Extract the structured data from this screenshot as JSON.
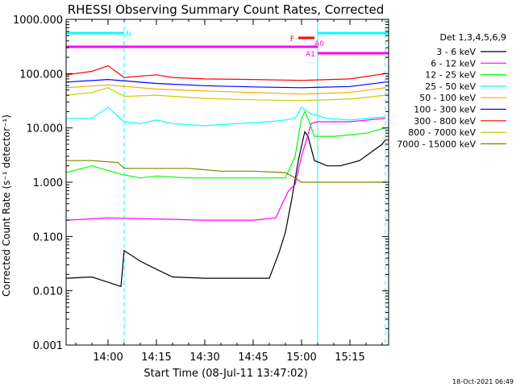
{
  "chart_data": {
    "type": "line",
    "title": "RHESSI Observing Summary Count Rates, Corrected",
    "xlabel": "Start Time (08-Jul-11 13:47:02)",
    "ylabel": "Corrected Count Rate (s⁻¹ detector⁻¹)",
    "y_scale": "log",
    "ylim": [
      0.001,
      1000
    ],
    "xlim": [
      "13:47",
      "15:27"
    ],
    "x_ticks": [
      "14:00",
      "14:15",
      "14:30",
      "14:45",
      "15:00",
      "15:15"
    ],
    "y_ticks": [
      "1000.000",
      "100.000",
      "10.000",
      "1.000",
      "0.100",
      "0.010",
      "0.001"
    ],
    "legend_title": "Det 1,3,4,5,6,9",
    "legend_position": "right",
    "footer_date": "18-Oct-2021 06:49",
    "series": [
      {
        "name": "3 - 6 keV",
        "color": "#000000",
        "x": [
          "13:47",
          "13:55",
          "14:04",
          "14:05",
          "14:10",
          "14:15",
          "14:20",
          "14:30",
          "14:40",
          "14:50",
          "14:53",
          "14:55",
          "14:57",
          "14:59",
          "15:01",
          "15:02",
          "15:04",
          "15:08",
          "15:12",
          "15:18",
          "15:25",
          "15:26"
        ],
        "y": [
          0.017,
          0.018,
          0.012,
          0.055,
          0.035,
          0.025,
          0.018,
          0.017,
          0.017,
          0.017,
          0.05,
          0.12,
          0.5,
          2.5,
          8.5,
          7.0,
          2.5,
          2.0,
          2.0,
          2.5,
          5.0,
          6.0
        ]
      },
      {
        "name": "6 - 12 keV",
        "color": "#ff00ff",
        "x": [
          "13:47",
          "14:00",
          "14:15",
          "14:30",
          "14:45",
          "14:52",
          "14:54",
          "14:56",
          "14:58",
          "15:00",
          "15:03",
          "15:05",
          "15:15",
          "15:26"
        ],
        "y": [
          0.2,
          0.22,
          0.21,
          0.2,
          0.2,
          0.22,
          0.4,
          0.7,
          0.9,
          3.0,
          12.0,
          13.0,
          13.0,
          15.0
        ]
      },
      {
        "name": "12 - 25 keV",
        "color": "#00ff00",
        "x": [
          "13:47",
          "13:55",
          "14:04",
          "14:10",
          "14:15",
          "14:25",
          "14:35",
          "14:45",
          "14:55",
          "14:58",
          "15:00",
          "15:01",
          "15:02",
          "15:04",
          "15:10",
          "15:20",
          "15:26"
        ],
        "y": [
          1.5,
          2.0,
          1.4,
          1.2,
          1.3,
          1.2,
          1.2,
          1.2,
          1.2,
          3.0,
          15.0,
          20.0,
          15.0,
          7.0,
          7.0,
          8.0,
          10.0
        ]
      },
      {
        "name": "25 - 50 keV",
        "color": "#00ffff",
        "x": [
          "13:47",
          "13:55",
          "14:00",
          "14:05",
          "14:10",
          "14:15",
          "14:20",
          "14:30",
          "14:40",
          "14:50",
          "14:55",
          "14:58",
          "15:00",
          "15:03",
          "15:08",
          "15:15",
          "15:26"
        ],
        "y": [
          15.0,
          15.0,
          24.0,
          13.0,
          12.0,
          14.0,
          12.0,
          11.0,
          12.0,
          13.0,
          14.0,
          15.0,
          24.0,
          18.0,
          15.0,
          14.0,
          16.0
        ]
      },
      {
        "name": "50 - 100 keV",
        "color": "#ffa500",
        "x": [
          "13:47",
          "14:00",
          "14:15",
          "14:30",
          "14:45",
          "15:00",
          "15:15",
          "15:26"
        ],
        "y": [
          55.0,
          62.0,
          52.0,
          48.0,
          45.0,
          42.0,
          45.0,
          55.0
        ]
      },
      {
        "name": "100 - 300 keV",
        "color": "#0000ff",
        "x": [
          "13:47",
          "14:00",
          "14:15",
          "14:30",
          "14:45",
          "15:00",
          "15:15",
          "15:26"
        ],
        "y": [
          70.0,
          78.0,
          66.0,
          60.0,
          57.0,
          55.0,
          58.0,
          70.0
        ]
      },
      {
        "name": "300 - 800 keV",
        "color": "#ff0000",
        "x": [
          "13:47",
          "13:55",
          "14:00",
          "14:05",
          "14:15",
          "14:20",
          "14:30",
          "14:45",
          "15:00",
          "15:15",
          "15:26"
        ],
        "y": [
          95.0,
          110.0,
          140.0,
          85.0,
          95.0,
          85.0,
          80.0,
          78.0,
          75.0,
          80.0,
          100.0
        ]
      },
      {
        "name": "800 - 7000 keV",
        "color": "#cccc00",
        "x": [
          "13:47",
          "13:55",
          "14:00",
          "14:05",
          "14:15",
          "14:30",
          "14:45",
          "15:00",
          "15:15",
          "15:26"
        ],
        "y": [
          40.0,
          45.0,
          55.0,
          38.0,
          40.0,
          35.0,
          33.0,
          32.0,
          34.0,
          40.0
        ]
      },
      {
        "name": "7000 - 15000 keV",
        "color": "#808000",
        "x": [
          "13:47",
          "13:55",
          "14:03",
          "14:05",
          "14:15",
          "14:25",
          "14:35",
          "14:45",
          "14:55",
          "14:58",
          "15:00",
          "15:05",
          "15:15",
          "15:26"
        ],
        "y": [
          2.5,
          2.5,
          2.3,
          1.8,
          1.8,
          1.8,
          1.6,
          1.6,
          1.5,
          1.2,
          1.0,
          1.0,
          1.0,
          1.0
        ]
      }
    ],
    "flag_bars": [
      {
        "label": "N",
        "color": "#00ffff",
        "segments": [
          [
            "13:47",
            "14:05"
          ],
          [
            "15:05",
            "15:27"
          ]
        ],
        "level": 1
      },
      {
        "label": "F",
        "color": "#ff0000",
        "segments": [
          [
            "14:59",
            "15:04"
          ]
        ],
        "level": 2
      },
      {
        "label": "A0",
        "color": "#ff00ff",
        "segments": [
          [
            "13:47",
            "15:05"
          ]
        ],
        "level": 3
      },
      {
        "label": "A1",
        "color": "#ff00ff",
        "segments": [
          [
            "15:05",
            "15:27"
          ]
        ],
        "level": 4
      }
    ],
    "vertical_markers": [
      {
        "time": "13:47",
        "color": "#00ffff",
        "style": "solid"
      },
      {
        "time": "14:05",
        "color": "#00ffff",
        "style": "dashed"
      },
      {
        "time": "15:05",
        "color": "#00ffff",
        "style": "solid"
      },
      {
        "time": "15:26",
        "color": "#00ffff",
        "style": "dashed"
      }
    ]
  }
}
